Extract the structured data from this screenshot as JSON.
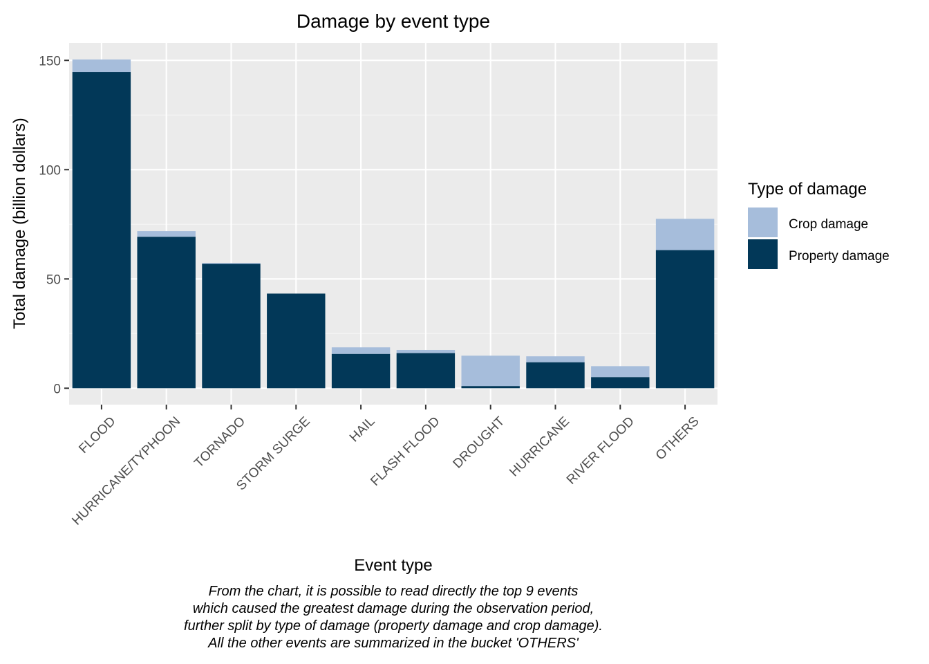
{
  "chart_data": {
    "type": "bar",
    "stacked": true,
    "title": "Damage by event type",
    "xlabel": "Event type",
    "ylabel": "Total damage (billion dollars)",
    "ylim": [
      -7.5,
      158
    ],
    "yticks": [
      0,
      50,
      100,
      150
    ],
    "grid": true,
    "legend_position": "right",
    "legend_title": "Type of damage",
    "categories": [
      "FLOOD",
      "HURRICANE/TYPHOON",
      "TORNADO",
      "STORM SURGE",
      "HAIL",
      "FLASH FLOOD",
      "DROUGHT",
      "HURRICANE",
      "RIVER FLOOD",
      "OTHERS"
    ],
    "series": [
      {
        "name": "Property damage",
        "color": "#023858",
        "values": [
          144.7,
          69.3,
          56.9,
          43.3,
          15.7,
          16.1,
          1.0,
          11.9,
          5.1,
          63.2
        ]
      },
      {
        "name": "Crop damage",
        "color": "#a6bddb",
        "values": [
          5.7,
          2.6,
          0.4,
          0.0,
          3.0,
          1.4,
          13.9,
          2.7,
          5.0,
          14.3
        ]
      }
    ],
    "legend_order": [
      "Crop damage",
      "Property damage"
    ],
    "colors": {
      "panel_background": "#ebebeb",
      "grid_major": "#ffffff",
      "grid_minor": "#f5f5f5",
      "axis_text": "#4d4d4d"
    }
  },
  "caption": {
    "lines": [
      "From the chart, it is possible to read directly the top 9 events",
      "which caused the greatest damage during the observation period,",
      "further split by type of damage (property damage and crop damage).",
      "All the other events are summarized in the bucket 'OTHERS'"
    ]
  }
}
